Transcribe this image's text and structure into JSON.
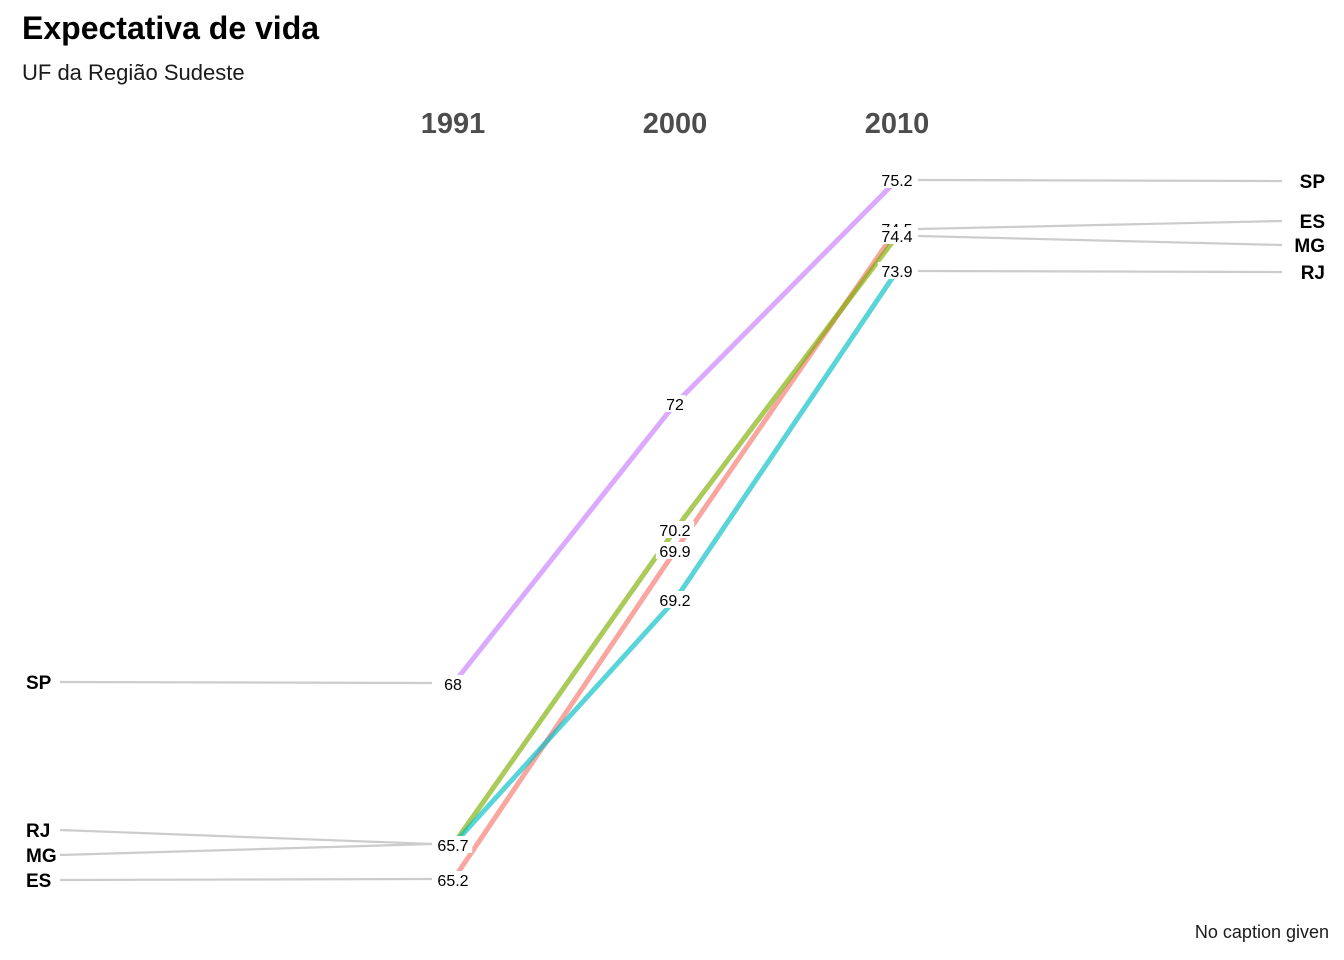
{
  "chart_data": {
    "type": "line",
    "title": "Expectativa de vida",
    "subtitle": "UF da Região Sudeste",
    "caption": "No caption given",
    "x": [
      "1991",
      "2000",
      "2010"
    ],
    "series": [
      {
        "name": "ES",
        "values": [
          65.2,
          69.9,
          74.5
        ],
        "color": "#F8766D",
        "labels": [
          "65.2",
          "69.9",
          "74.5"
        ]
      },
      {
        "name": "MG",
        "values": [
          65.7,
          70.2,
          74.4
        ],
        "color": "#7CAE00",
        "labels": [
          "",
          "70.2",
          "74.4"
        ]
      },
      {
        "name": "RJ",
        "values": [
          65.7,
          69.2,
          73.9
        ],
        "color": "#00BFC4",
        "labels": [
          "65.7",
          "69.2",
          "73.9"
        ]
      },
      {
        "name": "SP",
        "values": [
          68.0,
          72.0,
          75.2
        ],
        "color": "#C77CFF",
        "labels": [
          "68",
          "72",
          "75.2"
        ]
      }
    ],
    "left_labels_order": [
      "SP",
      "RJ",
      "MG",
      "ES"
    ],
    "right_labels_order": [
      "SP",
      "ES",
      "MG",
      "RJ"
    ],
    "legend": "none",
    "grid": false
  }
}
